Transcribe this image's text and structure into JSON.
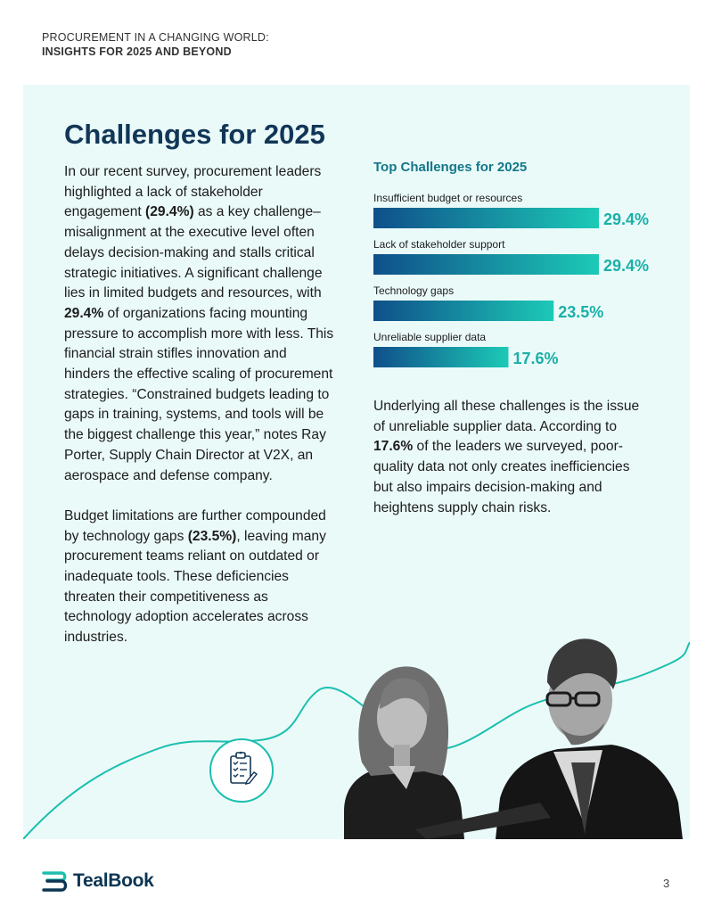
{
  "header": {
    "line1": "PROCUREMENT IN A CHANGING WORLD:",
    "line2": "INSIGHTS FOR 2025 AND BEYOND"
  },
  "main": {
    "title": "Challenges for 2025",
    "paragraph1": [
      {
        "text": "In our recent survey, procurement leaders highlighted a lack of stakeholder engagement ",
        "bold": false
      },
      {
        "text": "(29.4%)",
        "bold": true
      },
      {
        "text": " as a key challenge– misalignment at the executive level often delays decision-making and stalls critical strategic initiatives. A significant challenge lies in limited budgets and resources, with ",
        "bold": false
      },
      {
        "text": "29.4%",
        "bold": true
      },
      {
        "text": " of organizations facing mounting pressure to accomplish more with less. This financial strain stifles innovation and hinders the effective scaling of procurement strategies. “Constrained budgets leading to gaps in training, systems, and tools will be the biggest challenge this year,” notes Ray Porter, Supply Chain Director at V2X, an aerospace and defense company.",
        "bold": false
      }
    ],
    "paragraph2": [
      {
        "text": "Budget limitations are further compounded by technology gaps ",
        "bold": false
      },
      {
        "text": "(23.5%)",
        "bold": true
      },
      {
        "text": ", leaving many procurement teams reliant on outdated or inadequate tools. These deficiencies threaten their competitiveness as technology adoption accelerates across industries.",
        "bold": false
      }
    ],
    "paragraph3": [
      {
        "text": "Underlying all these challenges is the issue of unreliable supplier data. According to ",
        "bold": false
      },
      {
        "text": "17.6%",
        "bold": true
      },
      {
        "text": " of the leaders we surveyed, poor-quality data not only creates inefficiencies but also impairs decision-making and heightens supply chain risks.",
        "bold": false
      }
    ]
  },
  "chart_data": {
    "type": "bar",
    "orientation": "horizontal",
    "title": "Top Challenges for 2025",
    "categories": [
      "Insufficient budget or resources",
      "Lack of stakeholder support",
      "Technology gaps",
      "Unreliable supplier data"
    ],
    "values": [
      29.4,
      29.4,
      23.5,
      17.6
    ],
    "value_labels": [
      "29.4%",
      "29.4%",
      "23.5%",
      "17.6%"
    ],
    "unit": "%",
    "xlim": [
      0,
      29.4
    ],
    "grid": false,
    "legend": "none",
    "colors": {
      "bar_start": "#0f4f8a",
      "bar_end": "#1ccab6",
      "label": "#1ab0a8",
      "title": "#14778a"
    }
  },
  "illustration": {
    "icon": "clipboard-checklist-icon",
    "photo": "two-business-people-photo"
  },
  "footer": {
    "logo_text": "TealBook",
    "page_number": "3"
  },
  "colors": {
    "panel_bg": "#eafaf9",
    "title": "#123657",
    "accent": "#1bbfae"
  }
}
